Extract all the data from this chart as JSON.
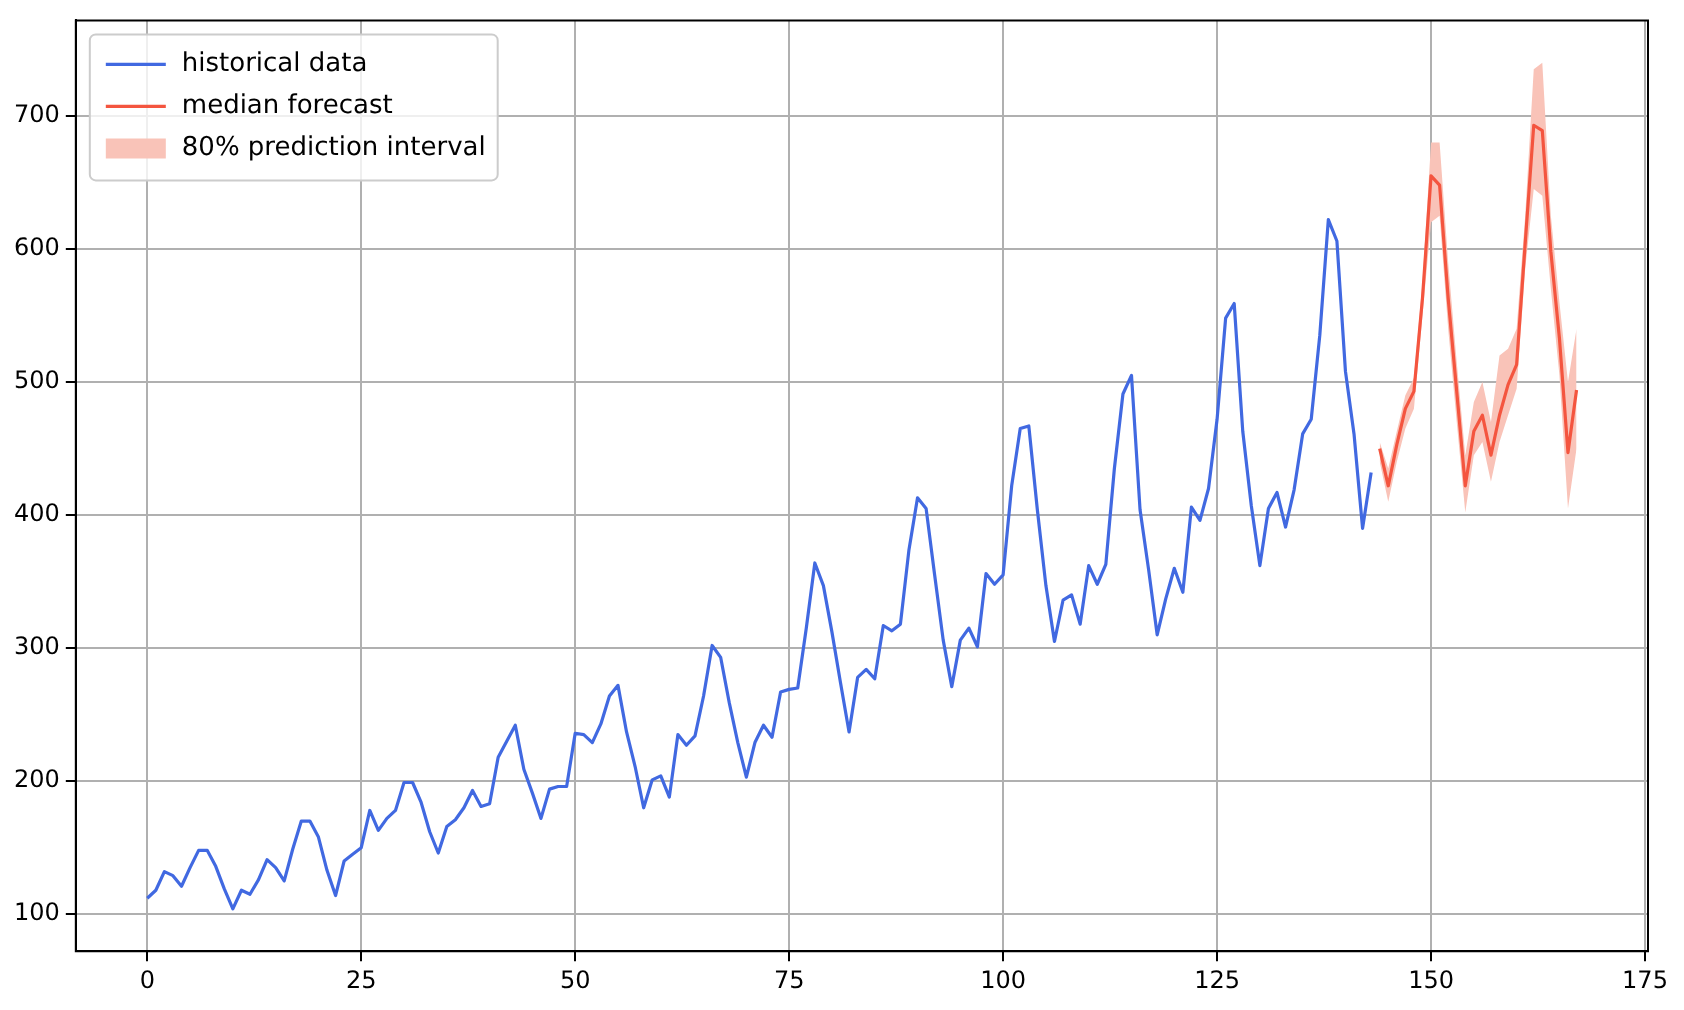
{
  "chart_data": {
    "type": "line",
    "xlim": [
      -8.35,
      175.35
    ],
    "ylim": [
      72.2,
      771.8
    ],
    "xticks": [
      0,
      25,
      50,
      75,
      100,
      125,
      150,
      175
    ],
    "yticks": [
      100,
      200,
      300,
      400,
      500,
      600,
      700
    ],
    "grid": true,
    "legend": "top left",
    "marker": "none",
    "line_style": "solid",
    "series": [
      {
        "name": "historical data",
        "color": "#4169e1",
        "x": [
          0,
          1,
          2,
          3,
          4,
          5,
          6,
          7,
          8,
          9,
          10,
          11,
          12,
          13,
          14,
          15,
          16,
          17,
          18,
          19,
          20,
          21,
          22,
          23,
          24,
          25,
          26,
          27,
          28,
          29,
          30,
          31,
          32,
          33,
          34,
          35,
          36,
          37,
          38,
          39,
          40,
          41,
          42,
          43,
          44,
          45,
          46,
          47,
          48,
          49,
          50,
          51,
          52,
          53,
          54,
          55,
          56,
          57,
          58,
          59,
          60,
          61,
          62,
          63,
          64,
          65,
          66,
          67,
          68,
          69,
          70,
          71,
          72,
          73,
          74,
          75,
          76,
          77,
          78,
          79,
          80,
          81,
          82,
          83,
          84,
          85,
          86,
          87,
          88,
          89,
          90,
          91,
          92,
          93,
          94,
          95,
          96,
          97,
          98,
          99,
          100,
          101,
          102,
          103,
          104,
          105,
          106,
          107,
          108,
          109,
          110,
          111,
          112,
          113,
          114,
          115,
          116,
          117,
          118,
          119,
          120,
          121,
          122,
          123,
          124,
          125,
          126,
          127,
          128,
          129,
          130,
          131,
          132,
          133,
          134,
          135,
          136,
          137,
          138,
          139,
          140,
          141,
          142,
          143
        ],
        "values": [
          112,
          118,
          132,
          129,
          121,
          135,
          148,
          148,
          136,
          119,
          104,
          118,
          115,
          126,
          141,
          135,
          125,
          149,
          170,
          170,
          158,
          133,
          114,
          140,
          145,
          150,
          178,
          163,
          172,
          178,
          199,
          199,
          184,
          162,
          146,
          166,
          171,
          180,
          193,
          181,
          183,
          218,
          230,
          242,
          209,
          191,
          172,
          194,
          196,
          196,
          236,
          235,
          229,
          243,
          264,
          272,
          237,
          211,
          180,
          201,
          204,
          188,
          235,
          227,
          234,
          264,
          302,
          293,
          259,
          229,
          203,
          229,
          242,
          233,
          267,
          269,
          270,
          315,
          364,
          347,
          312,
          274,
          237,
          278,
          284,
          277,
          317,
          313,
          318,
          374,
          413,
          405,
          355,
          306,
          271,
          306,
          315,
          301,
          356,
          348,
          355,
          422,
          465,
          467,
          404,
          347,
          305,
          336,
          340,
          318,
          362,
          348,
          363,
          435,
          491,
          505,
          404,
          359,
          310,
          337,
          360,
          342,
          406,
          396,
          420,
          472,
          548,
          559,
          463,
          407,
          362,
          405,
          417,
          391,
          419,
          461,
          472,
          535,
          622,
          606,
          508,
          461,
          390,
          432
        ]
      },
      {
        "name": "median forecast",
        "color": "#f4553f",
        "x": [
          144,
          145,
          146,
          147,
          148,
          149,
          150,
          151,
          152,
          153,
          154,
          155,
          156,
          157,
          158,
          159,
          160,
          161,
          162,
          163,
          164,
          165,
          166,
          167
        ],
        "values": [
          450,
          422,
          453,
          480,
          493,
          563,
          655,
          648,
          563,
          493,
          422,
          463,
          475,
          445,
          475,
          498,
          513,
          604,
          693,
          689,
          598,
          533,
          447,
          494
        ]
      },
      {
        "name": "80% prediction interval",
        "type": "area",
        "color": "#f9c3b8",
        "x": [
          144,
          145,
          146,
          147,
          148,
          149,
          150,
          151,
          152,
          153,
          154,
          155,
          156,
          157,
          158,
          159,
          160,
          161,
          162,
          163,
          164,
          165,
          166,
          167
        ],
        "values": [
          null,
          null,
          null,
          null,
          null,
          null,
          null,
          null,
          null,
          null,
          null,
          null,
          null,
          null,
          null,
          null,
          null,
          null,
          null,
          null,
          null,
          null,
          null,
          null
        ],
        "lower": [
          440,
          410,
          440,
          465,
          480,
          550,
          620,
          625,
          540,
          470,
          402,
          445,
          455,
          425,
          455,
          475,
          495,
          585,
          645,
          640,
          570,
          505,
          405,
          450
        ],
        "upper": [
          455,
          435,
          463,
          490,
          503,
          575,
          680,
          680,
          590,
          515,
          445,
          485,
          500,
          470,
          520,
          525,
          540,
          625,
          735,
          740,
          625,
          560,
          500,
          540
        ]
      }
    ]
  }
}
